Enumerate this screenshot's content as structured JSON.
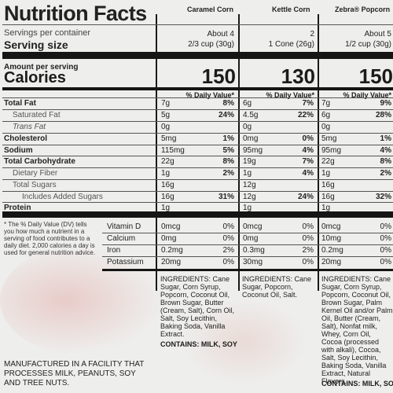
{
  "title": "Nutrition Facts",
  "columns": [
    {
      "name": "Caramel Corn",
      "servings": "About 4",
      "serving_size": "2/3 cup (30g)",
      "calories": "150"
    },
    {
      "name": "Kettle Corn",
      "servings": "2",
      "serving_size": "1 Cone (26g)",
      "calories": "130"
    },
    {
      "name": "Zebra® Popcorn",
      "servings": "About 5",
      "serving_size": "1/2 cup (30g)",
      "calories": "150"
    }
  ],
  "labels": {
    "servings_per_container": "Servings per container",
    "serving_size": "Serving size",
    "amount_per_serving": "Amount per serving",
    "calories": "Calories",
    "dv_header": "% Daily Value*"
  },
  "nutrients": [
    {
      "label": "Total Fat",
      "style": "bold",
      "values": [
        {
          "amt": "7g",
          "dv": "8%"
        },
        {
          "amt": "6g",
          "dv": "7%"
        },
        {
          "amt": "7g",
          "dv": "9%"
        }
      ]
    },
    {
      "label": "Saturated Fat",
      "style": "sub",
      "values": [
        {
          "amt": "5g",
          "dv": "24%"
        },
        {
          "amt": "4.5g",
          "dv": "22%"
        },
        {
          "amt": "6g",
          "dv": "28%"
        }
      ]
    },
    {
      "label": "Trans Fat",
      "style": "sub-italic",
      "values": [
        {
          "amt": "0g",
          "dv": ""
        },
        {
          "amt": "0g",
          "dv": ""
        },
        {
          "amt": "0g",
          "dv": ""
        }
      ]
    },
    {
      "label": "Cholesterol",
      "style": "bold",
      "values": [
        {
          "amt": "5mg",
          "dv": "1%"
        },
        {
          "amt": "0mg",
          "dv": "0%"
        },
        {
          "amt": "5mg",
          "dv": "1%"
        }
      ]
    },
    {
      "label": "Sodium",
      "style": "bold",
      "values": [
        {
          "amt": "115mg",
          "dv": "5%"
        },
        {
          "amt": "95mg",
          "dv": "4%"
        },
        {
          "amt": "95mg",
          "dv": "4%"
        }
      ]
    },
    {
      "label": "Total Carbohydrate",
      "style": "bold",
      "values": [
        {
          "amt": "22g",
          "dv": "8%"
        },
        {
          "amt": "19g",
          "dv": "7%"
        },
        {
          "amt": "22g",
          "dv": "8%"
        }
      ]
    },
    {
      "label": "Dietary Fiber",
      "style": "sub",
      "values": [
        {
          "amt": "1g",
          "dv": "2%"
        },
        {
          "amt": "1g",
          "dv": "4%"
        },
        {
          "amt": "1g",
          "dv": "2%"
        }
      ]
    },
    {
      "label": "Total Sugars",
      "style": "sub",
      "values": [
        {
          "amt": "16g",
          "dv": ""
        },
        {
          "amt": "12g",
          "dv": ""
        },
        {
          "amt": "16g",
          "dv": ""
        }
      ]
    },
    {
      "label": "Includes Added Sugars",
      "style": "sub2",
      "values": [
        {
          "amt": "16g",
          "dv": "31%"
        },
        {
          "amt": "12g",
          "dv": "24%"
        },
        {
          "amt": "16g",
          "dv": "32%"
        }
      ]
    },
    {
      "label": "Protein",
      "style": "bold",
      "values": [
        {
          "amt": "1g",
          "dv": ""
        },
        {
          "amt": "1g",
          "dv": ""
        },
        {
          "amt": "1g",
          "dv": ""
        }
      ]
    }
  ],
  "vitamins": [
    {
      "label": "Vitamin D",
      "values": [
        {
          "amt": "0mcg",
          "dv": "0%"
        },
        {
          "amt": "0mcg",
          "dv": "0%"
        },
        {
          "amt": "0mcg",
          "dv": "0%"
        }
      ]
    },
    {
      "label": "Calcium",
      "values": [
        {
          "amt": "0mg",
          "dv": "0%"
        },
        {
          "amt": "0mg",
          "dv": "0%"
        },
        {
          "amt": "10mg",
          "dv": "0%"
        }
      ]
    },
    {
      "label": "Iron",
      "values": [
        {
          "amt": "0.2mg",
          "dv": "2%"
        },
        {
          "amt": "0.3mg",
          "dv": "2%"
        },
        {
          "amt": "0.2mg",
          "dv": "0%"
        }
      ]
    },
    {
      "label": "Potassium",
      "values": [
        {
          "amt": "20mg",
          "dv": "0%"
        },
        {
          "amt": "30mg",
          "dv": "0%"
        },
        {
          "amt": "20mg",
          "dv": "0%"
        }
      ]
    }
  ],
  "footnote": "* The % Daily Value (DV) tells you how much a nutrient in a serving of food contributes to a daily diet. 2,000 calories a day is used for general nutrition advice.",
  "ingredients": [
    "INGREDIENTS: Cane Sugar, Corn Syrup, Popcorn, Coconut Oil, Brown Sugar, Butter (Cream, Salt), Corn Oil, Salt, Soy Lecithin, Baking Soda, Vanilla Extract.",
    "INGREDIENTS: Cane Sugar, Popcorn, Coconut Oil, Salt.",
    "INGREDIENTS: Cane Sugar, Corn Syrup, Popcorn, Coconut Oil, Brown Sugar, Palm Kernel Oil and/or Palm Oil, Butter (Cream, Salt), Nonfat milk, Whey, Corn Oil, Cocoa (processed with alkali), Cocoa, Salt, Soy Lecithin, Baking Soda, Vanilla Extract, Natural Flavors."
  ],
  "contains": [
    "CONTAINS: MILK, SOY",
    "",
    "CONTAINS: MILK, SOY"
  ],
  "facility_note": "MANUFACTURED IN A FACILITY THAT PROCESSES MILK, PEANUTS, SOY AND TREE NUTS.",
  "colors": {
    "background": "#eeeeec",
    "rule": "#151515",
    "watermark": "#d98f8a"
  }
}
